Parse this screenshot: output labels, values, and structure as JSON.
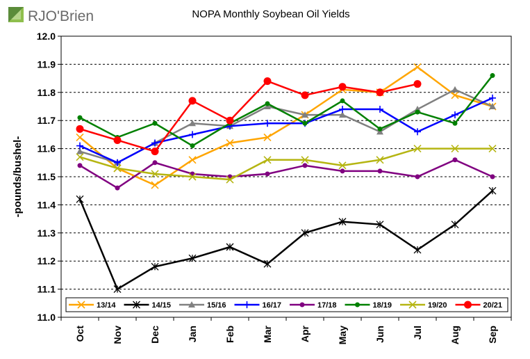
{
  "logo": {
    "text": "RJO'Brien",
    "icon": "rjo-brien-logo-mark"
  },
  "chart_data": {
    "type": "line",
    "title": "NOPA Monthly Soybean Oil Yields",
    "ylabel": "-pounds/bushel-",
    "xlabel": "",
    "ylim": [
      11.0,
      12.0
    ],
    "ytick_step": 0.1,
    "grid": "horizontal dashed",
    "legend_position": "bottom-inside",
    "categories": [
      "Oct",
      "Nov",
      "Dec",
      "Jan",
      "Feb",
      "Mar",
      "Apr",
      "May",
      "Jun",
      "Jul",
      "Aug",
      "Sep"
    ],
    "series": [
      {
        "name": "13/14",
        "color": "#FFA500",
        "marker": "x",
        "values": [
          11.64,
          11.53,
          11.47,
          11.56,
          11.62,
          11.64,
          11.72,
          11.81,
          11.8,
          11.89,
          11.79,
          11.75
        ]
      },
      {
        "name": "14/15",
        "color": "#000000",
        "marker": "star",
        "values": [
          11.42,
          11.1,
          11.18,
          11.21,
          11.25,
          11.19,
          11.3,
          11.34,
          11.33,
          11.24,
          11.33,
          11.45
        ]
      },
      {
        "name": "15/16",
        "color": "#808080",
        "marker": "triangle",
        "values": [
          11.59,
          11.55,
          11.62,
          11.69,
          11.68,
          11.75,
          11.72,
          11.72,
          11.66,
          11.74,
          11.81,
          11.75
        ]
      },
      {
        "name": "16/17",
        "color": "#0000FF",
        "marker": "plus",
        "values": [
          11.61,
          11.55,
          11.62,
          11.65,
          11.68,
          11.69,
          11.69,
          11.74,
          11.74,
          11.66,
          11.72,
          11.78
        ]
      },
      {
        "name": "17/18",
        "color": "#800080",
        "marker": "dot",
        "values": [
          11.54,
          11.46,
          11.55,
          11.51,
          11.5,
          11.51,
          11.54,
          11.52,
          11.52,
          11.5,
          11.56,
          11.5
        ]
      },
      {
        "name": "18/19",
        "color": "#008000",
        "marker": "dot",
        "values": [
          11.71,
          11.64,
          11.69,
          11.61,
          11.69,
          11.76,
          11.69,
          11.77,
          11.67,
          11.73,
          11.69,
          11.86
        ]
      },
      {
        "name": "19/20",
        "color": "#B5B512",
        "marker": "x",
        "values": [
          11.57,
          11.53,
          11.51,
          11.5,
          11.49,
          11.56,
          11.56,
          11.54,
          11.56,
          11.6,
          11.6,
          11.6
        ]
      },
      {
        "name": "20/21",
        "color": "#FF0000",
        "marker": "bigdot",
        "values": [
          11.67,
          11.63,
          11.59,
          11.77,
          11.7,
          11.84,
          11.79,
          11.82,
          11.8,
          11.83,
          null,
          null
        ]
      }
    ]
  }
}
